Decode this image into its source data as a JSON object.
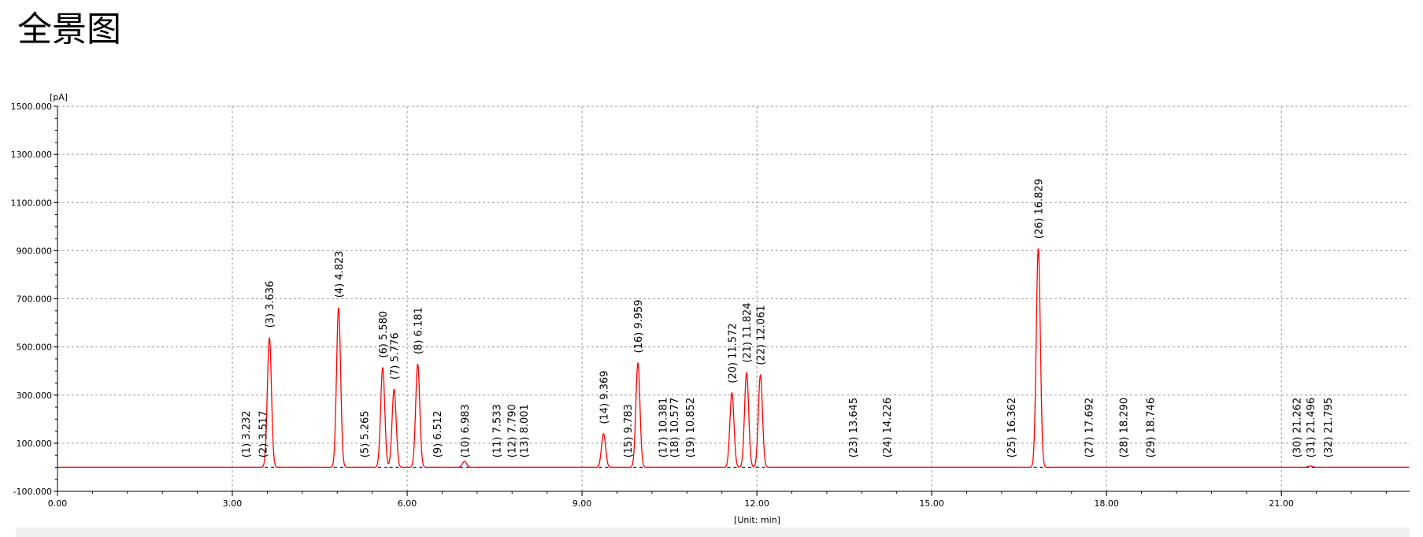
{
  "page": {
    "title": "全景图"
  },
  "chart_data": {
    "type": "line",
    "title": "",
    "xlabel": "[Unit: min]",
    "ylabel": "[pA]",
    "xlim": [
      0,
      23.2
    ],
    "ylim": [
      -100,
      1500
    ],
    "x_ticks": [
      "0.00",
      "3.00",
      "6.00",
      "9.00",
      "12.00",
      "15.00",
      "18.00",
      "21.00"
    ],
    "y_ticks": [
      "-100.000",
      "100.000",
      "300.000",
      "500.000",
      "700.000",
      "900.000",
      "1100.000",
      "1300.000",
      "1500.000"
    ],
    "grid": true,
    "baseline": 0,
    "line_color": "#ff0000",
    "marker_color": "#0000ff",
    "peaks": [
      {
        "label": "(1) 3.232",
        "rt": 3.232,
        "height": 0
      },
      {
        "label": "(2) 3.517",
        "rt": 3.517,
        "height": 0
      },
      {
        "label": "(3) 3.636",
        "rt": 3.636,
        "height": 540
      },
      {
        "label": "(4) 4.823",
        "rt": 4.823,
        "height": 665
      },
      {
        "label": "(5) 5.265",
        "rt": 5.265,
        "height": 0
      },
      {
        "label": "(6) 5.580",
        "rt": 5.58,
        "height": 415
      },
      {
        "label": "(7) 5.776",
        "rt": 5.776,
        "height": 325
      },
      {
        "label": "(8) 6.181",
        "rt": 6.181,
        "height": 430
      },
      {
        "label": "(9) 6.512",
        "rt": 6.512,
        "height": 0
      },
      {
        "label": "(10) 6.983",
        "rt": 6.983,
        "height": 25
      },
      {
        "label": "(11) 7.533",
        "rt": 7.533,
        "height": 0
      },
      {
        "label": "(12) 7.790",
        "rt": 7.79,
        "height": 0
      },
      {
        "label": "(13) 8.001",
        "rt": 8.001,
        "height": 0
      },
      {
        "label": "(14) 9.369",
        "rt": 9.369,
        "height": 140
      },
      {
        "label": "(15) 9.783",
        "rt": 9.783,
        "height": 0
      },
      {
        "label": "(16) 9.959",
        "rt": 9.959,
        "height": 435
      },
      {
        "label": "(17) 10.381",
        "rt": 10.381,
        "height": 0
      },
      {
        "label": "(18) 10.577",
        "rt": 10.577,
        "height": 0
      },
      {
        "label": "(19) 10.852",
        "rt": 10.852,
        "height": 0
      },
      {
        "label": "(20) 11.572",
        "rt": 11.572,
        "height": 310
      },
      {
        "label": "(21) 11.824",
        "rt": 11.824,
        "height": 395
      },
      {
        "label": "(22) 12.061",
        "rt": 12.061,
        "height": 385
      },
      {
        "label": "(23) 13.645",
        "rt": 13.645,
        "height": 0
      },
      {
        "label": "(24) 14.226",
        "rt": 14.226,
        "height": 0
      },
      {
        "label": "(25) 16.362",
        "rt": 16.362,
        "height": 0
      },
      {
        "label": "(26) 16.829",
        "rt": 16.829,
        "height": 910
      },
      {
        "label": "(27) 17.692",
        "rt": 17.692,
        "height": 0
      },
      {
        "label": "(28) 18.290",
        "rt": 18.29,
        "height": 0
      },
      {
        "label": "(29) 18.746",
        "rt": 18.746,
        "height": 0
      },
      {
        "label": "(30) 21.262",
        "rt": 21.262,
        "height": 0
      },
      {
        "label": "(31) 21.496",
        "rt": 21.496,
        "height": 5
      },
      {
        "label": "(32) 21.795",
        "rt": 21.795,
        "height": 0
      }
    ]
  }
}
